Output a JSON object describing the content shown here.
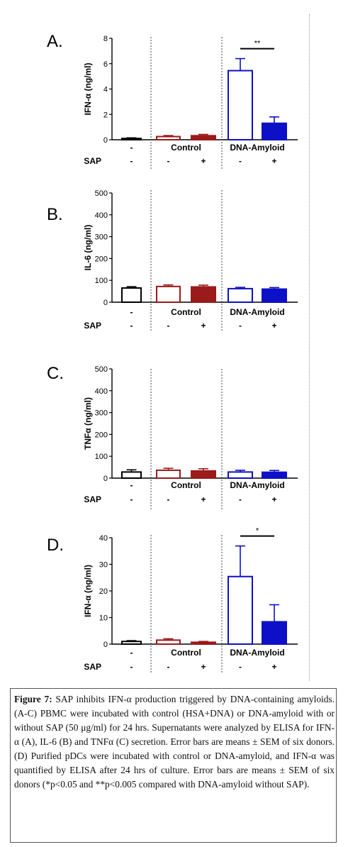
{
  "figure": {
    "caption_title": "Figure 7:",
    "caption_text": " SAP inhibits IFN-α production triggered by DNA-containing amyloids. (A-C) PBMC were incubated with control (HSA+DNA) or DNA-amyloid with or without SAP (50 μg/ml) for 24 hrs. Supernatants were analyzed by ELISA for IFN-α (A), IL-6 (B) and TNFα (C) secretion. Error bars are means ± SEM of six donors. (D) Purified pDCs were incubated with control or DNA-amyloid, and IFN-α was quantified by ELISA after 24 hrs of culture. Error bars are means ± SEM of six donors (*p<0.05 and **p<0.005 compared with DNA-amyloid without SAP)."
  },
  "colors": {
    "none": "#000000",
    "control": "#9b1a1a",
    "dna_amyloid": "#0d10c6"
  },
  "chart_data": [
    {
      "panel": "A.",
      "type": "bar",
      "ylabel": "IFN-α (ng/ml)",
      "ylim": [
        0,
        8
      ],
      "yticks": [
        "0",
        "2",
        "4",
        "6",
        "8"
      ],
      "categories": [
        "-",
        "-",
        "+",
        "-",
        "+"
      ],
      "groups": [
        "",
        "Control",
        "DNA-Amyloid"
      ],
      "row_label": "SAP",
      "values": [
        0.1,
        0.25,
        0.32,
        5.45,
        1.3
      ],
      "errors": [
        0.05,
        0.08,
        0.1,
        0.95,
        0.5
      ],
      "significance": "**"
    },
    {
      "panel": "B.",
      "type": "bar",
      "ylabel": "IL-6 (ng/ml)",
      "ylim": [
        0,
        500
      ],
      "yticks": [
        "0",
        "100",
        "200",
        "300",
        "400",
        "500"
      ],
      "categories": [
        "-",
        "-",
        "+",
        "-",
        "+"
      ],
      "groups": [
        "",
        "Control",
        "DNA-Amyloid"
      ],
      "row_label": "SAP",
      "values": [
        65,
        72,
        70,
        62,
        60
      ],
      "errors": [
        6,
        7,
        8,
        6,
        7
      ]
    },
    {
      "panel": "C.",
      "type": "bar",
      "ylabel": "TNFα (ng/ml)",
      "ylim": [
        0,
        500
      ],
      "yticks": [
        "0",
        "100",
        "200",
        "300",
        "400",
        "500"
      ],
      "categories": [
        "-",
        "-",
        "+",
        "-",
        "+"
      ],
      "groups": [
        "",
        "Control",
        "DNA-Amyloid"
      ],
      "row_label": "SAP",
      "values": [
        28,
        36,
        33,
        28,
        27
      ],
      "errors": [
        10,
        9,
        10,
        8,
        8
      ]
    },
    {
      "panel": "D.",
      "type": "bar",
      "ylabel": "IFN-α (ng/ml)",
      "ylim": [
        0,
        40
      ],
      "yticks": [
        "0",
        "10",
        "20",
        "30",
        "40"
      ],
      "categories": [
        "-",
        "-",
        "+",
        "-",
        "+"
      ],
      "groups": [
        "",
        "Control",
        "DNA-Amyloid"
      ],
      "row_label": "SAP",
      "values": [
        1.0,
        1.5,
        0.7,
        25.4,
        8.4
      ],
      "errors": [
        0.3,
        0.5,
        0.3,
        11.5,
        6.4
      ],
      "significance": "*"
    }
  ]
}
